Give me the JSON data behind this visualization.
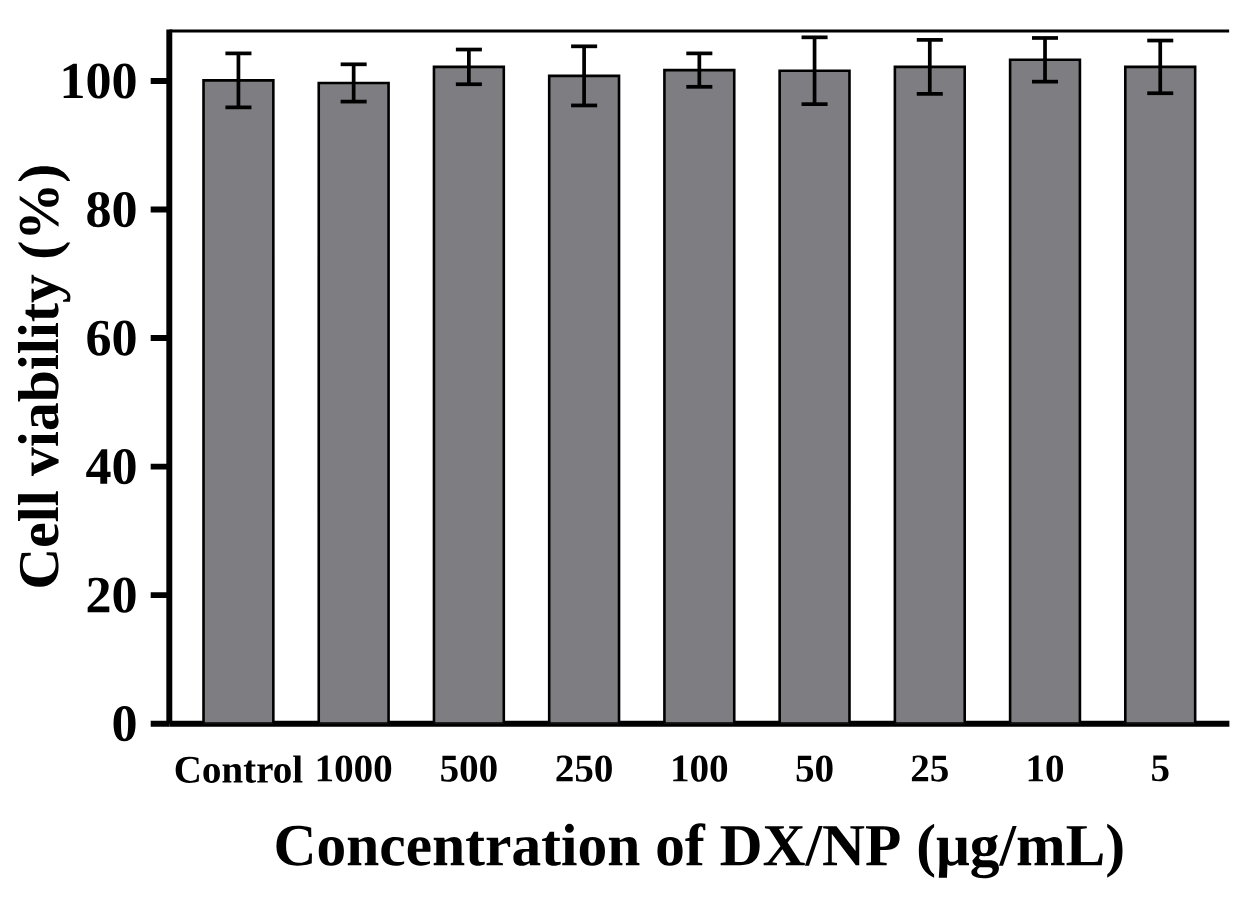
{
  "chart_data": {
    "type": "bar",
    "xlabel": "Concentration of DX/NP (μg/mL)",
    "ylabel": "Cell viability (%)",
    "categories": [
      "Control",
      "1000",
      "500",
      "250",
      "100",
      "50",
      "25",
      "10",
      "5"
    ],
    "values": [
      100.1,
      99.7,
      102.2,
      100.8,
      101.7,
      101.6,
      102.2,
      103.3,
      102.2
    ],
    "errors": [
      4.2,
      2.9,
      2.7,
      4.6,
      2.6,
      5.2,
      4.2,
      3.4,
      4.1
    ],
    "color": "#7e7e82",
    "ylim": [
      0,
      108
    ],
    "yticks": [
      0,
      20,
      40,
      60,
      80,
      100
    ]
  }
}
